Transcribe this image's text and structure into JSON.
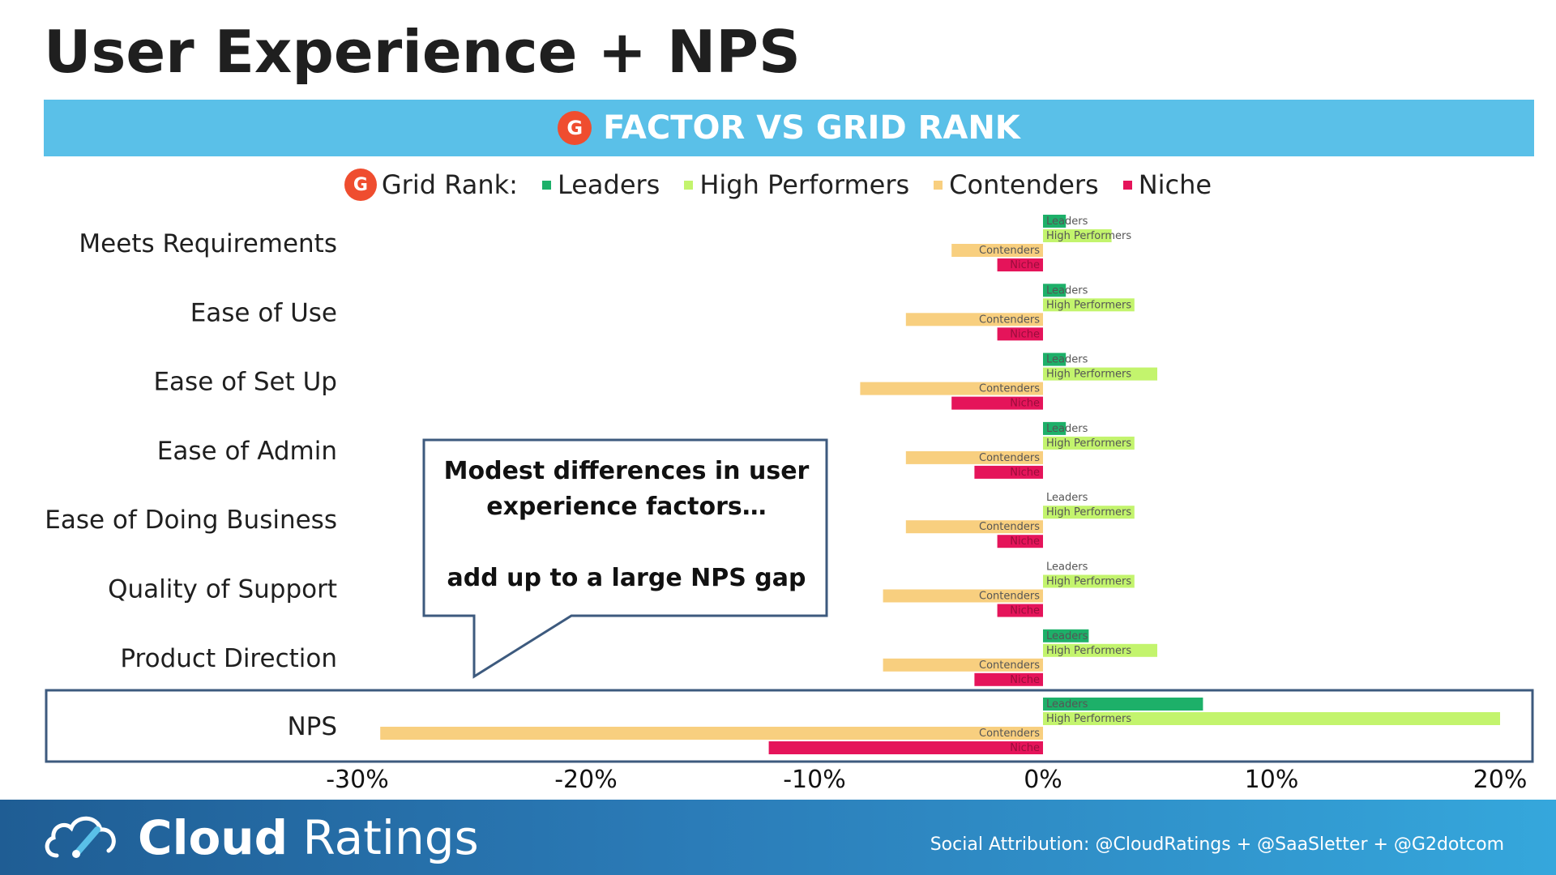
{
  "title": "User Experience + NPS",
  "banner": {
    "logo_text": "G",
    "text": "FACTOR VS GRID RANK"
  },
  "legend": {
    "prefix": "Grid Rank:",
    "items": [
      {
        "label": "Leaders",
        "color": "#1db069"
      },
      {
        "label": "High Performers",
        "color": "#c3f46d"
      },
      {
        "label": "Contenders",
        "color": "#f8cf7f"
      },
      {
        "label": "Niche",
        "color": "#e5145a"
      }
    ]
  },
  "callout": {
    "line1": "Modest differences in user",
    "line2": "experience factors…",
    "line3": "add up to a large NPS gap"
  },
  "chart_data": {
    "type": "bar",
    "orientation": "horizontal",
    "categories": [
      "Meets Requirements",
      "Ease of Use",
      "Ease of Set Up",
      "Ease of Admin",
      "Ease of Doing Business",
      "Quality of Support",
      "Product Direction",
      "NPS"
    ],
    "series": [
      {
        "name": "Leaders",
        "color": "#1db069",
        "values": [
          1,
          1,
          1,
          1,
          0,
          0,
          2,
          7
        ]
      },
      {
        "name": "High Performers",
        "color": "#c3f46d",
        "values": [
          3,
          4,
          5,
          4,
          4,
          4,
          5,
          20
        ]
      },
      {
        "name": "Contenders",
        "color": "#f8cf7f",
        "values": [
          -4,
          -6,
          -8,
          -6,
          -6,
          -7,
          -7,
          -29
        ]
      },
      {
        "name": "Niche",
        "color": "#e5145a",
        "values": [
          -2,
          -2,
          -4,
          -3,
          -2,
          -2,
          -3,
          -12
        ]
      }
    ],
    "xlim": [
      -30,
      20
    ],
    "ticks": [
      "-30%",
      "-20%",
      "-10%",
      "0%",
      "10%",
      "20%"
    ],
    "tick_values": [
      -30,
      -20,
      -10,
      0,
      10,
      20
    ],
    "highlighted_category": "NPS"
  },
  "footer": {
    "brand_bold": "Cloud",
    "brand_regular": " Ratings",
    "attribution": "Social Attribution: @CloudRatings + @SaaSletter + @G2dotcom"
  }
}
